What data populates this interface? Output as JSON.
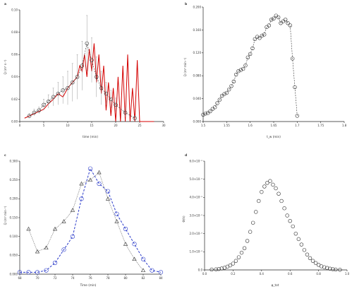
{
  "chart_data": [
    {
      "panel_label": "a",
      "type": "line",
      "xlabel": "time (min)",
      "ylabel": "Q (m³ s⁻¹)",
      "xlim": [
        0,
        30
      ],
      "ylim": [
        0.0,
        0.1
      ],
      "xticks": [
        0,
        5,
        10,
        15,
        20,
        25,
        30
      ],
      "yticks": [
        0.0,
        0.02,
        0.04,
        0.06,
        0.08,
        0.1
      ],
      "ytick_labels": [
        "0.00",
        "0.02",
        "0.04",
        "0.06",
        "0.08",
        "0.10"
      ],
      "colors": {
        "model": "#d40000",
        "obs": "#333333",
        "errorbar": "#999999"
      },
      "series": [
        {
          "style": "red-line",
          "x": [
            1,
            3,
            5,
            6,
            7,
            8,
            9,
            10,
            11,
            12,
            12.5,
            13,
            13.5,
            14,
            14.5,
            15,
            15.5,
            16,
            16.5,
            17,
            17.5,
            18,
            18.5,
            19,
            19.5,
            20,
            20.5,
            21,
            21.5,
            22,
            22.5,
            23,
            23.5,
            24,
            24.5,
            25,
            28
          ],
          "y": [
            0.003,
            0.007,
            0.011,
            0.016,
            0.02,
            0.025,
            0.022,
            0.03,
            0.035,
            0.04,
            0.05,
            0.045,
            0.06,
            0.04,
            0.065,
            0.045,
            0.07,
            0.035,
            0.06,
            0.025,
            0.05,
            0.01,
            0.035,
            0.005,
            0.03,
            0.0,
            0.04,
            0.0,
            0.05,
            0.0,
            0.06,
            0.0,
            0.03,
            0.0,
            0.055,
            0.0,
            0.0
          ]
        },
        {
          "style": "circles-dashed",
          "x": [
            2,
            3,
            4,
            5,
            6,
            7,
            8,
            9,
            10,
            11,
            12,
            13,
            14,
            15,
            16,
            17,
            18,
            19,
            20,
            22,
            24
          ],
          "y": [
            0.005,
            0.008,
            0.01,
            0.015,
            0.018,
            0.022,
            0.025,
            0.028,
            0.03,
            0.035,
            0.04,
            0.05,
            0.07,
            0.055,
            0.04,
            0.03,
            0.025,
            0.02,
            0.015,
            0.008,
            0.003
          ],
          "yerr": [
            0.002,
            0.003,
            0.003,
            0.005,
            0.006,
            0.008,
            0.01,
            0.012,
            0.015,
            0.017,
            0.02,
            0.022,
            0.025,
            0.02,
            0.018,
            0.015,
            0.01,
            0.008,
            0.006,
            0.004,
            0.002
          ]
        }
      ]
    },
    {
      "panel_label": "b",
      "type": "scatter",
      "xlabel": "t_w (min)",
      "ylabel": "Q (m³ min⁻¹)",
      "xlim": [
        1.5,
        1.8
      ],
      "ylim": [
        0.0,
        0.2
      ],
      "xticks": [
        1.5,
        1.55,
        1.6,
        1.65,
        1.7,
        1.75,
        1.8
      ],
      "yticks": [
        0.0,
        0.04,
        0.08,
        0.12,
        0.16,
        0.2
      ],
      "ytick_labels": [
        "0.000",
        "0.040",
        "0.080",
        "0.120",
        "0.160",
        "0.200"
      ],
      "colors": {
        "marker": "#333333"
      },
      "series": [
        {
          "style": "circles-dashed",
          "x": [
            1.5,
            1.505,
            1.51,
            1.515,
            1.52,
            1.525,
            1.53,
            1.535,
            1.54,
            1.545,
            1.55,
            1.555,
            1.56,
            1.565,
            1.57,
            1.575,
            1.58,
            1.585,
            1.59,
            1.595,
            1.6,
            1.605,
            1.61,
            1.615,
            1.62,
            1.625,
            1.63,
            1.635,
            1.64,
            1.645,
            1.65,
            1.655,
            1.66,
            1.665,
            1.67,
            1.675,
            1.68,
            1.685,
            1.69,
            1.695,
            1.7
          ],
          "y": [
            0.012,
            0.014,
            0.015,
            0.018,
            0.022,
            0.025,
            0.032,
            0.038,
            0.045,
            0.048,
            0.05,
            0.056,
            0.062,
            0.07,
            0.082,
            0.088,
            0.09,
            0.092,
            0.098,
            0.112,
            0.118,
            0.128,
            0.144,
            0.148,
            0.146,
            0.15,
            0.152,
            0.165,
            0.168,
            0.178,
            0.18,
            0.185,
            0.182,
            0.172,
            0.175,
            0.178,
            0.172,
            0.168,
            0.11,
            0.06,
            0.01
          ]
        }
      ]
    },
    {
      "panel_label": "c",
      "type": "line",
      "xlabel": "Time (min)",
      "ylabel": "Q (m³ min⁻¹)",
      "xlim": [
        68,
        84
      ],
      "ylim": [
        0.0,
        0.3
      ],
      "xticks": [
        68,
        70,
        72,
        74,
        76,
        78,
        80,
        82,
        84
      ],
      "yticks": [
        0.0,
        0.05,
        0.1,
        0.15,
        0.2,
        0.25,
        0.3
      ],
      "ytick_labels": [
        "0.000",
        "0.050",
        "0.100",
        "0.150",
        "0.200",
        "0.250",
        "0.300"
      ],
      "colors": {
        "blue": "#2b3bc9",
        "triangles": "#333333"
      },
      "series": [
        {
          "style": "blue-circles-dashed",
          "x": [
            68,
            69,
            70,
            71,
            72,
            73,
            74,
            75,
            76,
            77,
            78,
            79,
            80,
            81,
            82,
            83,
            84
          ],
          "y": [
            0.005,
            0.005,
            0.005,
            0.01,
            0.03,
            0.065,
            0.1,
            0.2,
            0.28,
            0.24,
            0.22,
            0.16,
            0.12,
            0.08,
            0.04,
            0.01,
            0.005
          ]
        },
        {
          "style": "triangles-dotted",
          "x": [
            69,
            70,
            71,
            72,
            73,
            74,
            75,
            76,
            77,
            78,
            79,
            80,
            81,
            82
          ],
          "y": [
            0.12,
            0.06,
            0.07,
            0.12,
            0.14,
            0.17,
            0.24,
            0.25,
            0.27,
            0.2,
            0.14,
            0.08,
            0.04,
            0.01
          ]
        }
      ]
    },
    {
      "panel_label": "d",
      "type": "scatter",
      "xlabel": "φ_tot",
      "ylabel": "Φ(h)",
      "xlim": [
        0.0,
        1.0
      ],
      "ylim": [
        0.0,
        6e-05
      ],
      "xticks": [
        0.0,
        0.2,
        0.4,
        0.6,
        0.8,
        1.0
      ],
      "xtick_labels": [
        "0.0",
        "0.2",
        "0.4",
        "0.6",
        "0.8",
        "1.0"
      ],
      "yticks": [
        0.0,
        1e-05,
        2e-05,
        3e-05,
        4e-05,
        5e-05,
        6e-05
      ],
      "ytick_labels": [
        "0.0",
        "1.0×10⁻⁵",
        "2.0×10⁻⁵",
        "3.0×10⁻⁵",
        "4.0×10⁻⁵",
        "5.0×10⁻⁵",
        "6.0×10⁻⁵"
      ],
      "colors": {
        "marker": "#333333"
      },
      "series": [
        {
          "style": "circles",
          "x": [
            0.05,
            0.08,
            0.1,
            0.12,
            0.14,
            0.16,
            0.18,
            0.2,
            0.22,
            0.24,
            0.26,
            0.28,
            0.3,
            0.32,
            0.34,
            0.36,
            0.38,
            0.4,
            0.42,
            0.44,
            0.46,
            0.48,
            0.5,
            0.52,
            0.54,
            0.56,
            0.58,
            0.6,
            0.62,
            0.64,
            0.66,
            0.68,
            0.7,
            0.72,
            0.74,
            0.76,
            0.78,
            0.8,
            0.82,
            0.84,
            0.86,
            0.88,
            0.9,
            0.92,
            0.95
          ],
          "y": [
            2e-07,
            3e-07,
            5e-07,
            8e-07,
            1.2e-06,
            1.8e-06,
            2.5e-06,
            3.5e-06,
            5e-06,
            7e-06,
            9.5e-06,
            1.2e-05,
            1.6e-05,
            2.1e-05,
            2.6e-05,
            3.2e-05,
            3.8e-05,
            4.3e-05,
            4.6e-05,
            4.8e-05,
            4.9e-05,
            4.7e-05,
            4.5e-05,
            4.2e-05,
            3.8e-05,
            3.4e-05,
            3e-05,
            2.7e-05,
            2.4e-05,
            2e-05,
            1.7e-05,
            1.4e-05,
            1.1e-05,
            8.5e-06,
            6.5e-06,
            5e-06,
            3.8e-06,
            2.8e-06,
            2e-06,
            1.5e-06,
            1.1e-06,
            7e-07,
            4e-07,
            2e-07,
            1e-07
          ]
        }
      ]
    }
  ]
}
